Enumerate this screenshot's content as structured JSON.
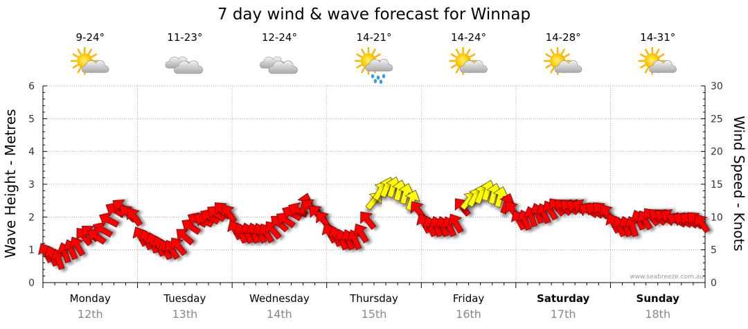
{
  "chart_data": {
    "type": "wind-arrow",
    "title": "7 day wind & wave forecast for Winnap",
    "y_left": {
      "label": "Wave Height - Metres",
      "min": 0,
      "max": 6,
      "ticks": [
        "0",
        "1",
        "2",
        "3",
        "4",
        "5",
        "6"
      ]
    },
    "y_right": {
      "label": "Wind Speed - Knots",
      "min": 0,
      "max": 30,
      "ticks": [
        "0",
        "5",
        "10",
        "15",
        "20",
        "25",
        "30"
      ]
    },
    "grid": true,
    "days": [
      {
        "name": "Monday",
        "date": "12th",
        "temp": "9-24°",
        "weather": "partly-cloudy-icon",
        "bold": false
      },
      {
        "name": "Tuesday",
        "date": "13th",
        "temp": "11-23°",
        "weather": "cloudy-icon",
        "bold": false
      },
      {
        "name": "Wednesday",
        "date": "14th",
        "temp": "12-24°",
        "weather": "cloudy-icon",
        "bold": false
      },
      {
        "name": "Thursday",
        "date": "15th",
        "temp": "14-21°",
        "weather": "showers-icon",
        "bold": false
      },
      {
        "name": "Friday",
        "date": "16th",
        "temp": "14-24°",
        "weather": "partly-cloudy-icon",
        "bold": false
      },
      {
        "name": "Saturday",
        "date": "17th",
        "temp": "14-28°",
        "weather": "partly-cloudy-icon",
        "bold": true
      },
      {
        "name": "Sunday",
        "date": "18th",
        "temp": "14-31°",
        "weather": "partly-cloudy-icon",
        "bold": true
      }
    ],
    "series": [
      {
        "name": "Wind",
        "unit": "knots",
        "values": [
          4.5,
          4,
          3.5,
          4.5,
          5,
          5.5,
          7,
          7.5,
          7,
          8,
          9.5,
          11,
          11.5,
          10.5,
          10,
          7,
          6.5,
          6,
          5.5,
          5,
          5,
          5.5,
          7,
          8.5,
          9.5,
          9.5,
          10,
          10.5,
          11,
          10.5,
          8,
          7.5,
          7.5,
          7.5,
          7.5,
          7.5,
          8,
          9,
          9.5,
          10.5,
          11,
          12,
          11.5,
          10.5,
          9.5,
          7.5,
          7,
          6.5,
          6.5,
          6.5,
          7.5,
          9.5,
          12.5,
          14,
          14.5,
          14.5,
          14,
          13.5,
          12.5,
          11,
          9,
          8.5,
          8.5,
          8.5,
          8.5,
          9,
          11.5,
          12.5,
          13,
          13.5,
          14,
          13.5,
          13,
          12,
          11,
          9.5,
          9.5,
          10,
          10.5,
          10.5,
          11,
          11.5,
          11.5,
          11.5,
          11.5,
          11.5,
          11,
          11,
          11,
          10.5,
          9,
          8.5,
          8.5,
          8.5,
          9.5,
          9.5,
          10,
          10,
          10,
          10,
          9.5,
          9.5,
          9.5,
          9.5,
          9
        ],
        "colors": [
          "#ff0000",
          "#ffff00"
        ]
      }
    ],
    "credit": "www.seabreeze.com.au"
  }
}
